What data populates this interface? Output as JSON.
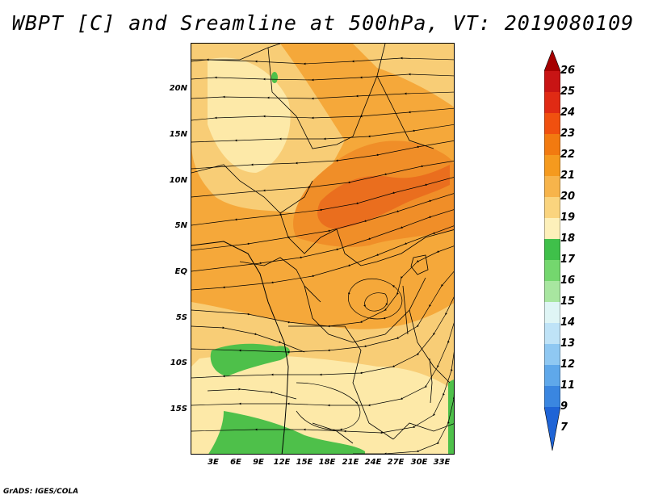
{
  "title": "WBPT [C] and Sreamline at 500hPa, VT: 2019080109",
  "credit": "GrADS: IGES/COLA",
  "lat_ticks": [
    "20N",
    "15N",
    "10N",
    "5N",
    "EQ",
    "5S",
    "10S",
    "15S"
  ],
  "lon_ticks": [
    "3E",
    "6E",
    "9E",
    "12E",
    "15E",
    "18E",
    "21E",
    "24E",
    "27E",
    "30E",
    "33E"
  ],
  "colorbar": {
    "levels": [
      "26",
      "25",
      "24",
      "23",
      "22",
      "21",
      "20",
      "19",
      "18",
      "17",
      "16",
      "15",
      "14",
      "13",
      "12",
      "11",
      "9",
      "7"
    ],
    "colors": [
      "#a50000",
      "#c81414",
      "#e02a14",
      "#f0500f",
      "#f27a10",
      "#f59a1e",
      "#f7b44b",
      "#fad47e",
      "#fdf0ba",
      "#3fc04a",
      "#74d76e",
      "#a8e6a0",
      "#dff5f5",
      "#bfe3f7",
      "#8fc8f2",
      "#5fa8ea",
      "#3a86e0",
      "#1f64d6"
    ]
  },
  "map_colors": {
    "wbpt_20_21": "#f5a83a",
    "wbpt_21_22": "#f08e28",
    "wbpt_22_23": "#ea6e1e",
    "wbpt_19_20": "#f8cd76",
    "wbpt_18_19": "#fde9a8",
    "wbpt_17_18": "#4ec04a"
  }
}
